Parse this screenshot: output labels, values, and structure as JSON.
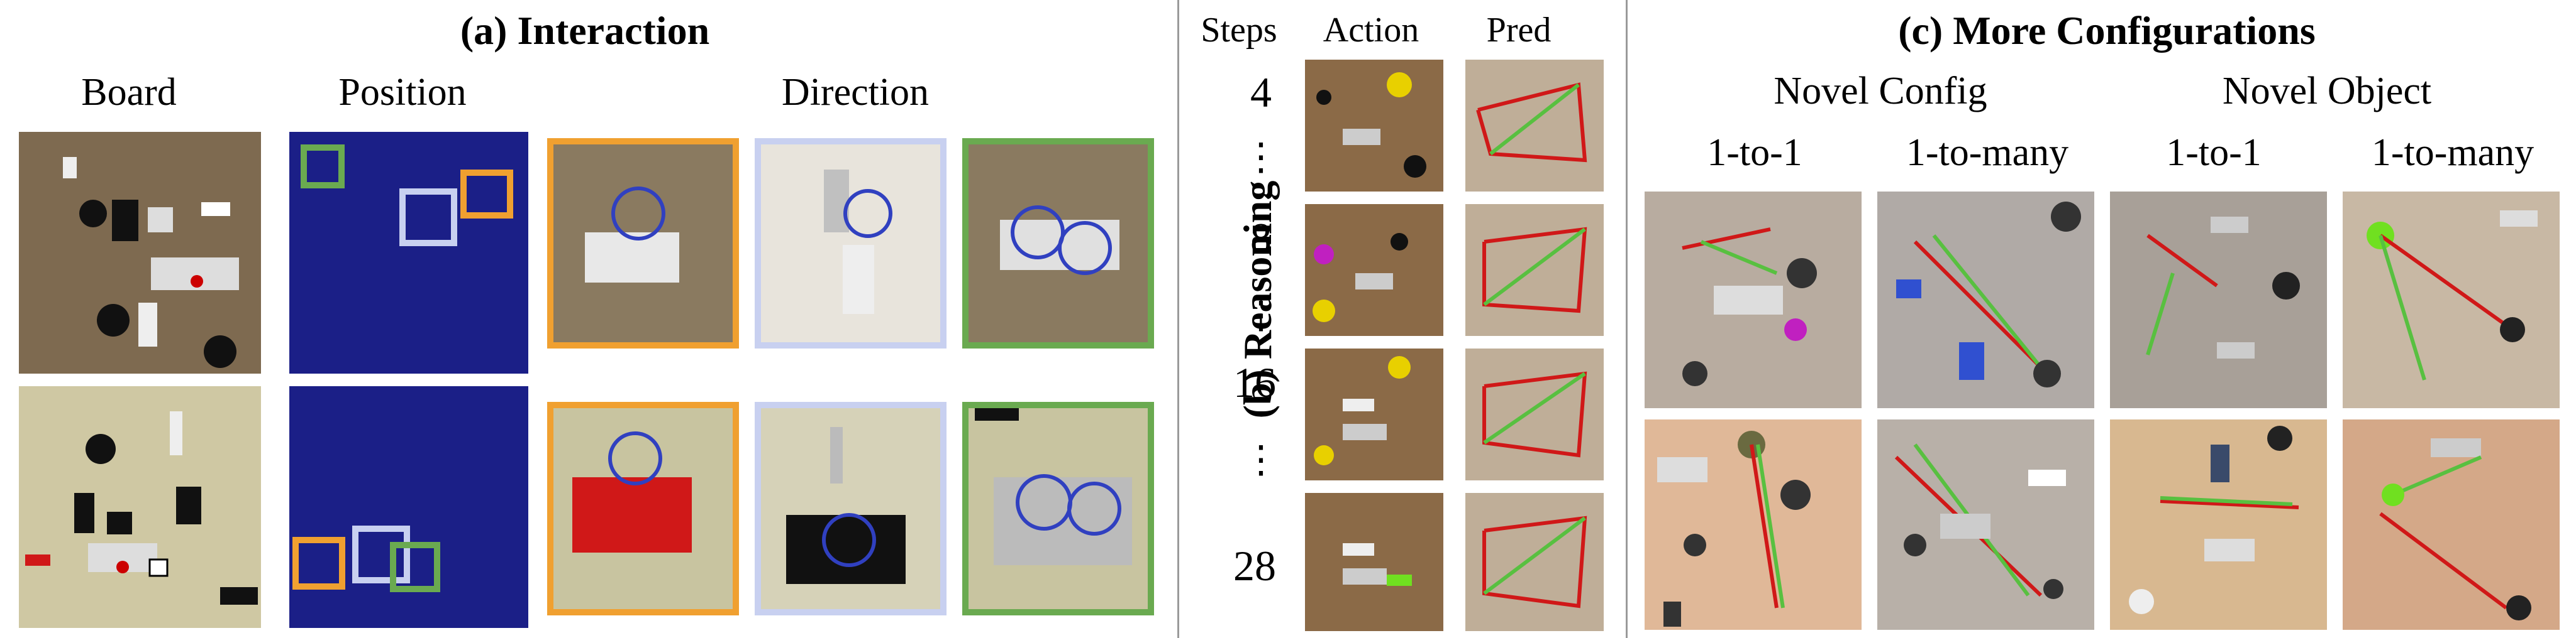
{
  "panel_a": {
    "title": "(a) Interaction",
    "col_board": "Board",
    "col_position": "Position",
    "col_direction": "Direction"
  },
  "panel_b": {
    "label": "(b) Reasoning",
    "col_steps": "Steps",
    "col_action": "Action",
    "col_pred": "Pred",
    "steps": [
      "4",
      "8",
      "16",
      "28"
    ],
    "dots": "⋮"
  },
  "panel_c": {
    "title": "(c) More Configurations",
    "group_novel_config": "Novel Config",
    "group_novel_object": "Novel Object",
    "col_1to1_a": "1-to-1",
    "col_1tomany_a": "1-to-many",
    "col_1to1_b": "1-to-1",
    "col_1tomany_b": "1-to-many"
  },
  "colors": {
    "orange_frame": "#f0a030",
    "lavender_frame": "#c8d0f0",
    "green_frame": "#6aaa50",
    "red_arrow": "#d01818",
    "green_arrow": "#58c040"
  }
}
